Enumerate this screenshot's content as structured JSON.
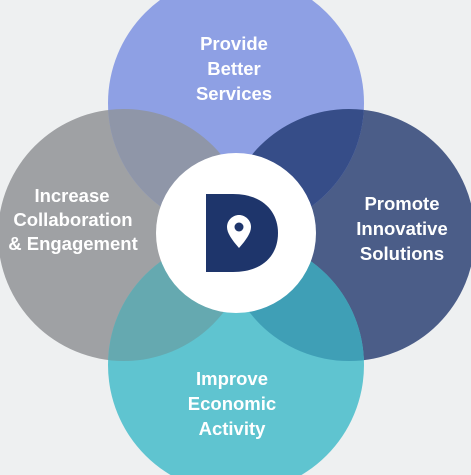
{
  "diagram": {
    "center_logo": {
      "letter": "D",
      "icon": "location-pin-icon"
    },
    "circles": [
      {
        "key": "top",
        "lines": [
          "Provide",
          "Better",
          "Services"
        ],
        "color": "#8ea0e4",
        "text_color": "#ffffff"
      },
      {
        "key": "left",
        "lines": [
          "Increase",
          "Collaboration",
          "& Engagement"
        ],
        "color": "#9fa1a4",
        "text_color": "#ffffff"
      },
      {
        "key": "right",
        "lines": [
          "Promote",
          "Innovative",
          "Solutions"
        ],
        "color": "#4b5d88",
        "text_color": "#ffffff"
      },
      {
        "key": "bottom",
        "lines": [
          "Improve",
          "Economic",
          "Activity"
        ],
        "color": "#5fc4d0",
        "text_color": "#ffffff"
      }
    ],
    "colors": {
      "background": "#eef0f1",
      "overlap_top_left": "#8f96a8",
      "overlap_top_right": "#364d88",
      "overlap_left_bottom": "#65a9b0",
      "overlap_right_bottom": "#3f9fb6",
      "logo_dark": "#1e356b",
      "center_disc": "#ffffff"
    }
  }
}
